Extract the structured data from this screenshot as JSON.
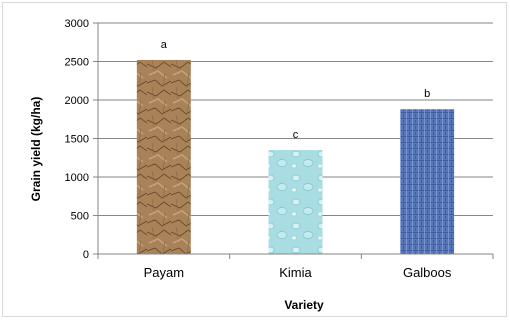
{
  "chart_data": {
    "type": "bar",
    "categories": [
      "Payam",
      "Kimia",
      "Galboos"
    ],
    "values": [
      2520,
      1350,
      1880
    ],
    "data_labels": [
      "a",
      "c",
      "b"
    ],
    "xlabel": "Variety",
    "ylabel": "Grain yield (kg/ha)",
    "ylim": [
      0,
      3000
    ],
    "yticks": [
      "0",
      "500",
      "1000",
      "1500",
      "2000",
      "2500",
      "3000"
    ],
    "grid": true,
    "legend": "none",
    "bar_fills": [
      "crumpled brown paper texture",
      "light aqua water-drop texture",
      "blue woven denim texture"
    ],
    "colors": [
      "#a9825a",
      "#a8dde4",
      "#5877b8"
    ]
  }
}
